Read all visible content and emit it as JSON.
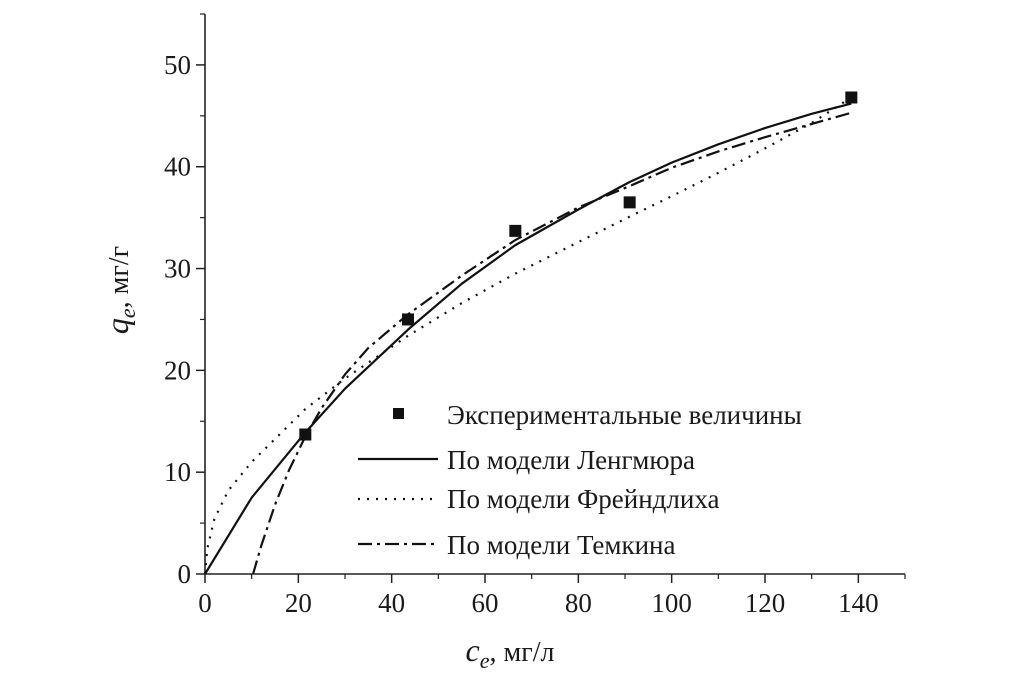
{
  "chart_data": {
    "type": "scatter",
    "xlabel": {
      "var": "c",
      "sub": "e",
      "unit": ", мг/л"
    },
    "ylabel": {
      "var": "q",
      "sub": "e",
      "unit": ", мг/г"
    },
    "xlim": [
      0,
      150
    ],
    "ylim": [
      0,
      55
    ],
    "x_ticks": [
      0,
      20,
      40,
      60,
      80,
      100,
      120,
      140
    ],
    "y_ticks": [
      0,
      10,
      20,
      30,
      40,
      50
    ],
    "grid": false,
    "legend": "bottom-right",
    "series": [
      {
        "name": "Экспериментальные величины",
        "style": "square-marker",
        "x": [
          21.5,
          43.5,
          66.5,
          91,
          138.5
        ],
        "y": [
          13.7,
          25,
          33.7,
          36.5,
          46.8
        ]
      },
      {
        "name": "По модели Ленгмюра",
        "style": "solid",
        "x": [
          0,
          10,
          21.5,
          30,
          43.5,
          55,
          66.5,
          80,
          91,
          100,
          110,
          120,
          130,
          138.5
        ],
        "y": [
          0,
          7.5,
          13.9,
          18.2,
          24,
          28.5,
          32.3,
          35.8,
          38.5,
          40.4,
          42.2,
          43.8,
          45.2,
          46.2
        ]
      },
      {
        "name": "По модели Фрейндлиха",
        "style": "dotted",
        "x": [
          0,
          0.5,
          2,
          5,
          10,
          21.5,
          30,
          43.5,
          55,
          66.5,
          80,
          91,
          100,
          110,
          120,
          130,
          138.5
        ],
        "y": [
          0,
          2.5,
          5.4,
          8.2,
          11,
          16.2,
          19.2,
          23.4,
          26.6,
          29.5,
          32.6,
          35.1,
          37.1,
          39.4,
          41.8,
          44.3,
          46.8
        ]
      },
      {
        "name": "По модели Темкина",
        "style": "dash-dot",
        "x": [
          10.3,
          12,
          15,
          18,
          21.5,
          25,
          30,
          35,
          43.5,
          55,
          66.5,
          80,
          91,
          100,
          110,
          120,
          130,
          138.5
        ],
        "y": [
          0,
          2.7,
          6.8,
          10.2,
          13.5,
          16.3,
          19.6,
          22.2,
          25.5,
          29.3,
          32.8,
          36,
          38.1,
          39.9,
          41.5,
          42.9,
          44.2,
          45.3
        ]
      }
    ]
  }
}
